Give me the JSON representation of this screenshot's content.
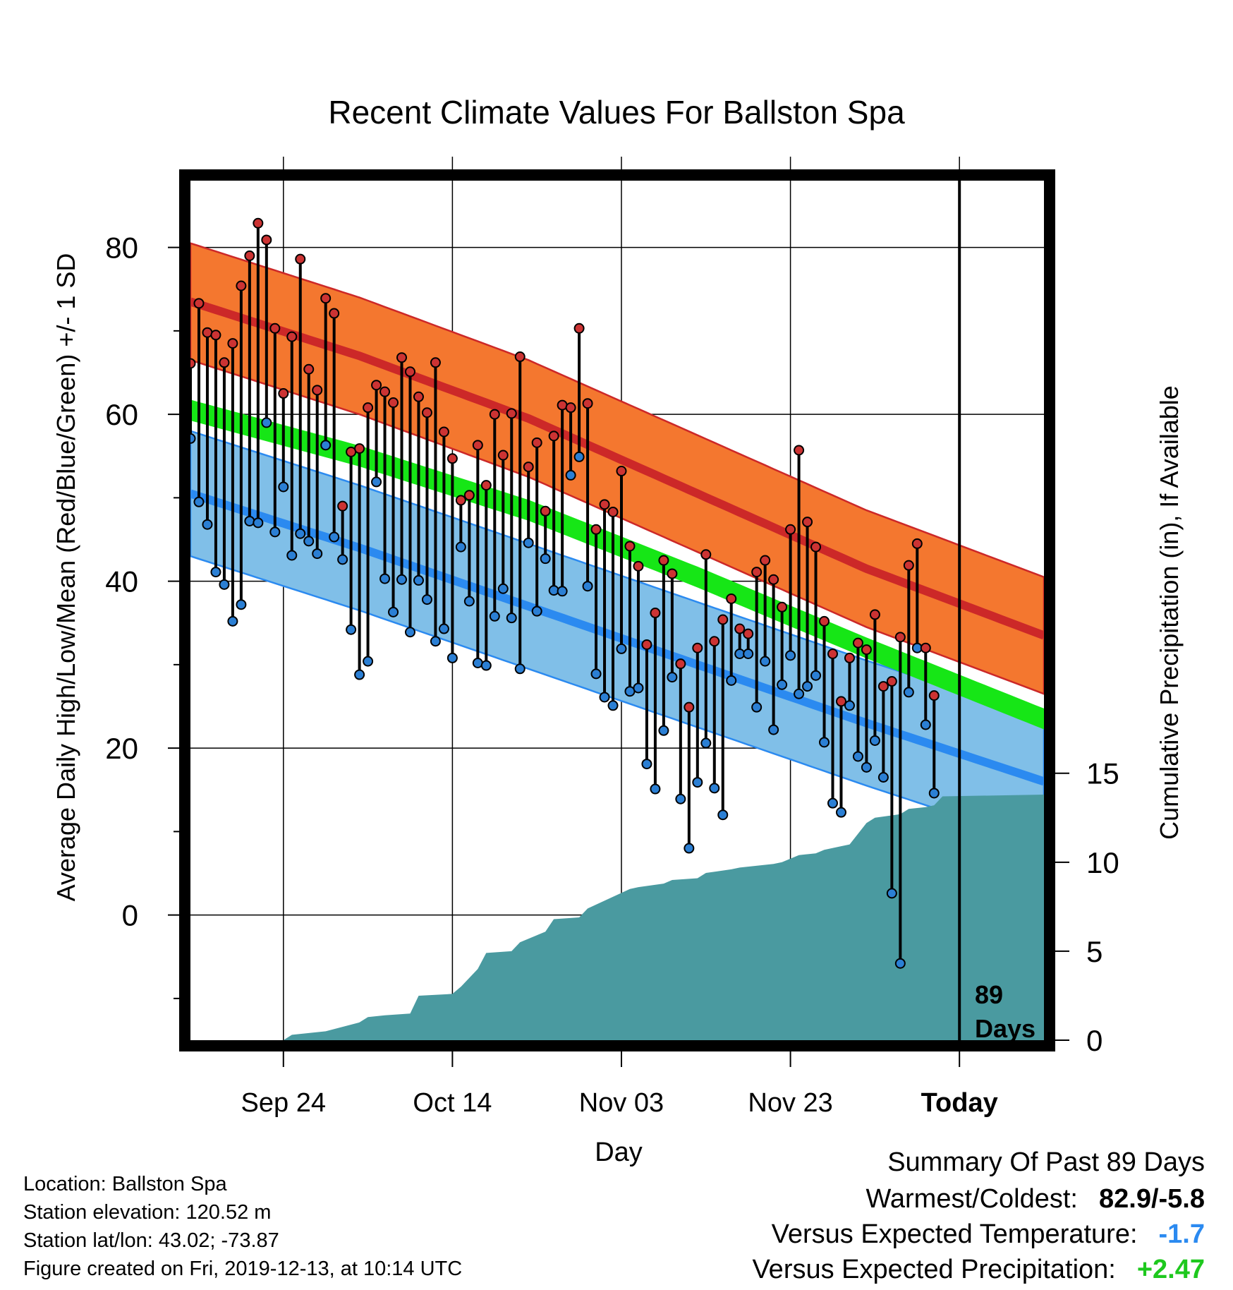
{
  "chart_data": {
    "type": "line",
    "title": "Recent Climate Values For Ballston Spa",
    "xlabel": "Day",
    "ylabel": "Average Daily High/Low/Mean (Red/Blue/Green) +/- 1 SD",
    "y2label": "Cumulative Precipitation (in), If Available",
    "x_tick_labels": [
      "Sep 24",
      "Oct 14",
      "Nov 03",
      "Nov 23",
      "Today"
    ],
    "x_tick_days": [
      11,
      31,
      51,
      71,
      91
    ],
    "x_range_days": [
      0,
      101
    ],
    "today_day": 91,
    "ylim": [
      -15,
      88
    ],
    "y_ticks": [
      0,
      20,
      40,
      60,
      80
    ],
    "y2lim": [
      0,
      48.3
    ],
    "y2_ticks": [
      0,
      5,
      10,
      15
    ],
    "days_label": [
      "89",
      "Days"
    ],
    "normals": {
      "day": [
        0,
        20,
        40,
        60,
        80,
        101
      ],
      "high_mean": [
        73.5,
        67,
        59.5,
        50.5,
        41.5,
        33.5
      ],
      "high_sd": 7,
      "low_mean": [
        50.5,
        44,
        37,
        30,
        23,
        16
      ],
      "low_sd": 7.5,
      "avg_mean": [
        60.5,
        55,
        48.5,
        40.5,
        32,
        23.5
      ],
      "avg_band_width": 2.5,
      "colors": {
        "high_band": "#f4772f",
        "high_line": "#cc2828",
        "overlap": "#8b1414",
        "low_band": "#80bfe8",
        "low_line": "#2b8af0",
        "avg_band": "#16e616"
      }
    },
    "series": [
      {
        "name": "High",
        "color": "#cc3333",
        "values": [
          66.1,
          73.3,
          69.8,
          69.5,
          66.2,
          68.5,
          75.4,
          79.0,
          82.9,
          80.9,
          70.3,
          62.5,
          69.3,
          78.6,
          65.4,
          62.9,
          73.9,
          72.1,
          49.0,
          55.5,
          55.9,
          60.8,
          63.5,
          62.7,
          61.4,
          66.8,
          65.1,
          62.1,
          60.2,
          66.2,
          57.9,
          54.7,
          49.7,
          50.3,
          56.3,
          51.5,
          60.0,
          55.1,
          60.1,
          66.9,
          53.7,
          56.6,
          48.4,
          57.4,
          61.1,
          60.8,
          70.3,
          61.3,
          46.2,
          49.2,
          48.3,
          53.2,
          44.2,
          41.8,
          32.4,
          36.2,
          42.5,
          40.9,
          30.1,
          24.9,
          32.0,
          43.2,
          32.8,
          35.4,
          37.9,
          34.3,
          33.7,
          41.1,
          42.5,
          40.2,
          36.9,
          46.2,
          55.7,
          47.1,
          44.1,
          35.2,
          31.3,
          25.6,
          30.8,
          32.6,
          31.8,
          36.0,
          27.4,
          28.0,
          33.3,
          41.9,
          44.5,
          32.0,
          26.3
        ]
      },
      {
        "name": "Low",
        "color": "#2b7fd4",
        "values": [
          57.1,
          49.5,
          46.8,
          41.1,
          39.6,
          35.2,
          37.2,
          47.2,
          47.0,
          59.0,
          45.9,
          51.3,
          43.1,
          45.7,
          44.8,
          43.3,
          56.3,
          45.3,
          42.6,
          34.2,
          28.8,
          30.4,
          51.9,
          40.3,
          36.3,
          40.2,
          33.9,
          40.1,
          37.8,
          32.8,
          34.3,
          30.8,
          44.1,
          37.6,
          30.2,
          29.9,
          35.8,
          39.1,
          35.6,
          29.5,
          44.6,
          36.4,
          42.7,
          38.9,
          38.8,
          52.7,
          54.9,
          39.4,
          28.9,
          26.1,
          25.1,
          31.9,
          26.8,
          27.2,
          18.1,
          15.1,
          22.1,
          28.5,
          13.9,
          8.0,
          15.9,
          20.6,
          15.2,
          12.0,
          28.1,
          31.3,
          31.3,
          24.9,
          30.4,
          22.2,
          27.6,
          31.1,
          26.5,
          27.4,
          28.7,
          20.7,
          13.4,
          12.3,
          25.1,
          19.0,
          17.7,
          20.9,
          16.5,
          2.6,
          -5.8,
          26.7,
          32.0,
          22.8,
          14.6
        ]
      },
      {
        "name": "Cumulative Precipitation",
        "color": "#4a9aa0",
        "day": [
          0,
          11,
          12,
          16,
          20,
          21,
          23,
          26,
          27,
          31,
          32,
          34,
          35,
          38,
          39,
          42,
          43,
          46,
          47,
          52,
          53,
          56,
          57,
          60,
          61,
          64,
          65,
          69,
          70,
          71,
          72,
          74,
          75,
          77,
          78,
          80,
          81,
          84,
          85,
          87,
          88,
          89,
          101
        ],
        "values": [
          0,
          0,
          0.3,
          0.5,
          1.0,
          1.3,
          1.4,
          1.5,
          2.5,
          2.6,
          3.0,
          4.0,
          4.9,
          5.0,
          5.5,
          6.1,
          6.8,
          6.9,
          7.4,
          8.5,
          8.6,
          8.8,
          9.0,
          9.1,
          9.4,
          9.6,
          9.7,
          9.9,
          10.0,
          10.2,
          10.4,
          10.5,
          10.7,
          10.9,
          11.0,
          12.2,
          12.5,
          12.7,
          13.0,
          13.1,
          13.2,
          13.7,
          13.8
        ]
      }
    ]
  },
  "footer": {
    "location": "Location: Ballston Spa",
    "elevation": "Station elevation: 120.52 m",
    "latlon": "Station lat/lon: 43.02; -73.87",
    "created": "Figure created on Fri, 2019-12-13, at 10:14 UTC"
  },
  "summary": {
    "heading": "Summary Of Past 89 Days",
    "warmest_coldest_label": "Warmest/Coldest:",
    "warmest_coldest_value": "82.9/-5.8",
    "temp_label": "Versus Expected Temperature:",
    "temp_value": "-1.7",
    "temp_color": "#2b8af0",
    "precip_label": "Versus Expected Precipitation:",
    "precip_value": "+2.47",
    "precip_color": "#1ec81e"
  }
}
